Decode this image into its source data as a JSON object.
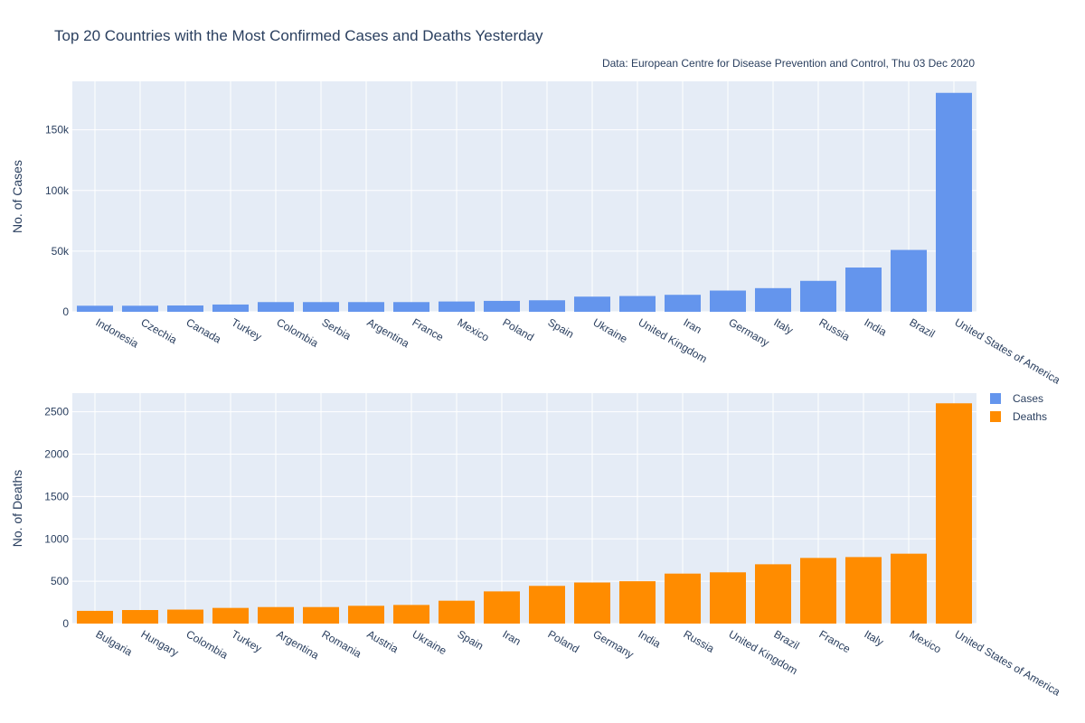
{
  "header": {
    "title": "Top 20 Countries with the Most Confirmed Cases and Deaths Yesterday",
    "source": "Data: European Centre for Disease Prevention and Control, Thu 03 Dec 2020"
  },
  "colors": {
    "cases": "#6495ED",
    "deaths": "#FF8C00",
    "plot_bg": "#E5ECF6",
    "grid": "#ffffff"
  },
  "legend": {
    "position": "right",
    "items": [
      "Cases",
      "Deaths"
    ]
  },
  "chart_data": [
    {
      "type": "bar",
      "series_name": "Cases",
      "ylabel": "No. of Cases",
      "ylim": [
        0,
        190000
      ],
      "yticks": [
        0,
        50000,
        100000,
        150000
      ],
      "ytick_labels": [
        "0",
        "50k",
        "100k",
        "150k"
      ],
      "categories": [
        "Indonesia",
        "Czechia",
        "Canada",
        "Turkey",
        "Colombia",
        "Serbia",
        "Argentina",
        "France",
        "Mexico",
        "Poland",
        "Spain",
        "Ukraine",
        "United Kingdom",
        "Iran",
        "Germany",
        "Italy",
        "Russia",
        "India",
        "Brazil",
        "United States of America"
      ],
      "values": [
        5000,
        5000,
        5200,
        6000,
        8000,
        8000,
        8000,
        8000,
        8500,
        9000,
        9500,
        12500,
        13000,
        14000,
        17500,
        19500,
        25500,
        36500,
        51000,
        180500
      ]
    },
    {
      "type": "bar",
      "series_name": "Deaths",
      "ylabel": "No. of Deaths",
      "ylim": [
        0,
        2720
      ],
      "yticks": [
        0,
        500,
        1000,
        1500,
        2000,
        2500
      ],
      "ytick_labels": [
        "0",
        "500",
        "1000",
        "1500",
        "2000",
        "2500"
      ],
      "categories": [
        "Bulgaria",
        "Hungary",
        "Colombia",
        "Turkey",
        "Argentina",
        "Romania",
        "Austria",
        "Ukraine",
        "Spain",
        "Iran",
        "Poland",
        "Germany",
        "India",
        "Russia",
        "United Kingdom",
        "Brazil",
        "France",
        "Italy",
        "Mexico",
        "United States of America"
      ],
      "values": [
        150,
        160,
        165,
        185,
        195,
        195,
        210,
        220,
        270,
        380,
        445,
        485,
        500,
        590,
        605,
        700,
        775,
        785,
        825,
        2600
      ]
    }
  ]
}
